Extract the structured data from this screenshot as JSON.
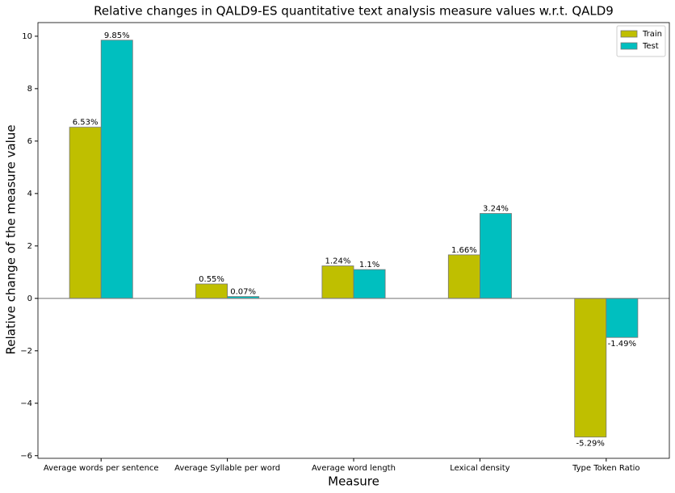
{
  "chart_data": {
    "type": "bar",
    "title": "Relative changes in QALD9-ES quantitative text analysis measure values w.r.t. QALD9",
    "x_label": "Measure",
    "y_label": "Relative change of the measure value",
    "categories": [
      "Average words per sentence",
      "Average Syllable per word",
      "Average word length",
      "Lexical density",
      "Type Token Ratio"
    ],
    "series": [
      {
        "name": "Train",
        "color": "#bfbf00",
        "values": [
          6.53,
          0.55,
          1.24,
          1.66,
          -5.29
        ],
        "value_labels": [
          "6.53%",
          "0.55%",
          "1.24%",
          "1.66%",
          "-5.29%"
        ]
      },
      {
        "name": "Test",
        "color": "#00bfbf",
        "values": [
          9.85,
          0.07,
          1.1,
          3.24,
          -1.49
        ],
        "value_labels": [
          "9.85%",
          "0.07%",
          "1.1%",
          "3.24%",
          "-1.49%"
        ]
      }
    ],
    "ylim": [
      -6.1,
      10.52
    ],
    "yticks": [
      {
        "value": -6,
        "label": "−6"
      },
      {
        "value": -4,
        "label": "−4"
      },
      {
        "value": -2,
        "label": "−2"
      },
      0,
      2,
      4,
      6,
      8,
      10
    ],
    "legend": "upper right"
  }
}
